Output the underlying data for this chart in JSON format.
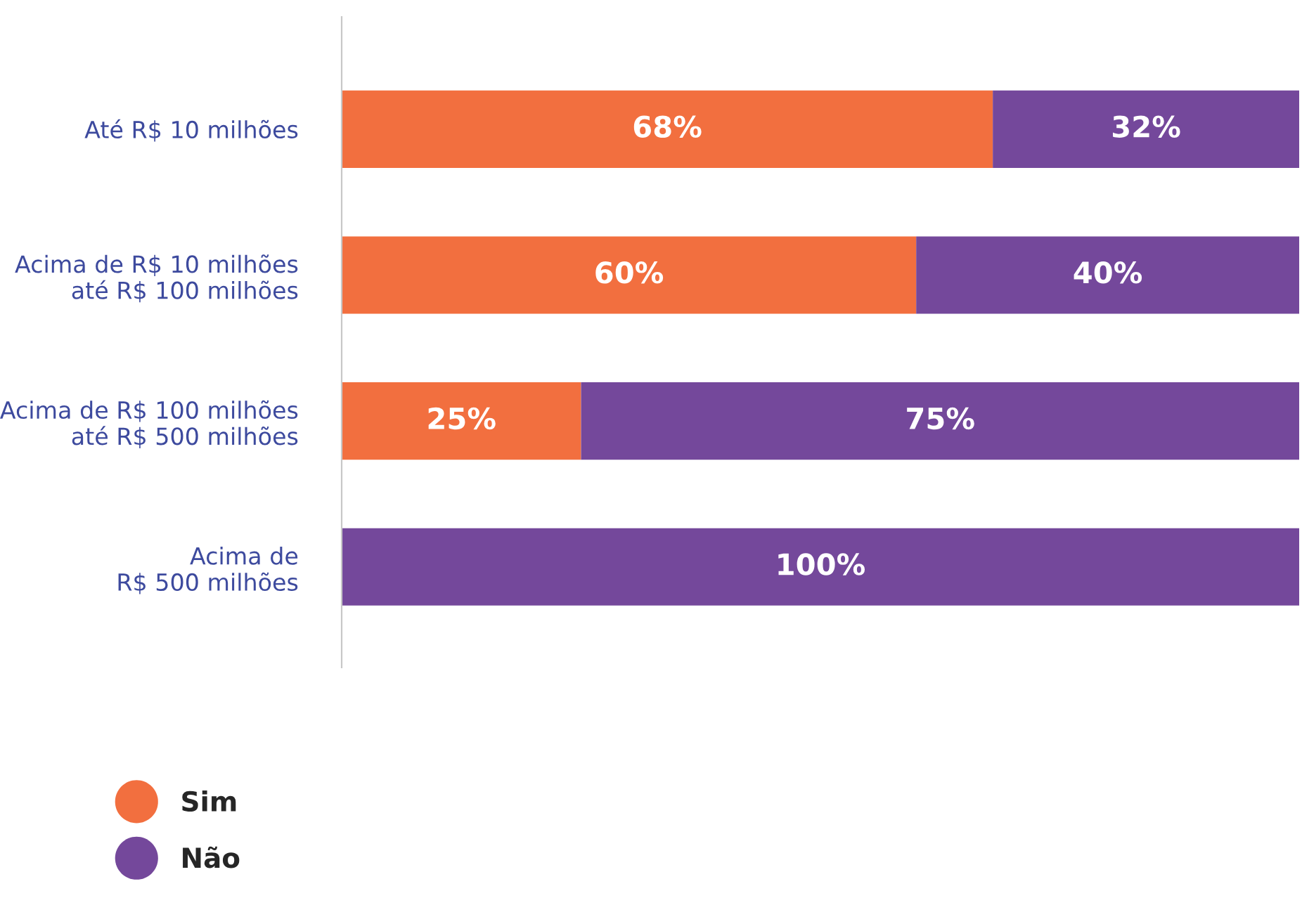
{
  "chart_data": {
    "type": "bar",
    "orientation": "horizontal",
    "stacked": true,
    "categories": [
      "Até R$ 10 milhões",
      "Acima de R$ 10 milhões\naté R$ 100 milhões",
      "Acima de R$ 100 milhões\naté R$ 500 milhões",
      "Acima de\nR$ 500 milhões"
    ],
    "series": [
      {
        "name": "Sim",
        "color": "#f26f3f",
        "values": [
          68,
          60,
          25,
          0
        ],
        "value_labels": [
          "68%",
          "60%",
          "25%",
          null
        ]
      },
      {
        "name": "Não",
        "color": "#74489b",
        "values": [
          32,
          40,
          75,
          100
        ],
        "value_labels": [
          "32%",
          "40%",
          "75%",
          "100%"
        ]
      }
    ],
    "xlim": [
      0,
      100
    ],
    "tick_labels": "y",
    "grid": false,
    "legend": "bottom left"
  }
}
